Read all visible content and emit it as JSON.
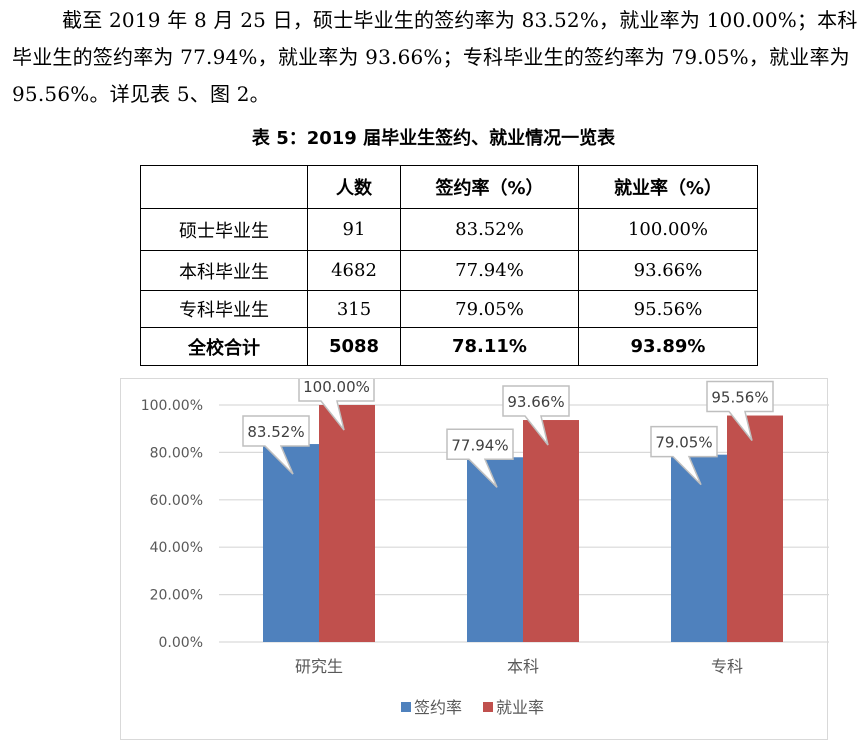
{
  "paragraph": "截至 2019 年 8 月 25 日，硕士毕业生的签约率为 83.52%，就业率为 100.00%；本科毕业生的签约率为 77.94%，就业率为 93.66%；专科毕业生的签约率为 79.05%，就业率为 95.56%。详见表 5、图 2。",
  "table": {
    "caption": "表 5：2019 届毕业生签约、就业情况一览表",
    "headers": [
      "",
      "人数",
      "签约率（%）",
      "就业率（%）"
    ],
    "rows": [
      [
        "硕士毕业生",
        "91",
        "83.52%",
        "100.00%"
      ],
      [
        "本科毕业生",
        "4682",
        "77.94%",
        "93.66%"
      ],
      [
        "专科毕业生",
        "315",
        "79.05%",
        "95.56%"
      ]
    ],
    "total": [
      "全校合计",
      "5088",
      "78.11%",
      "93.89%"
    ]
  },
  "chart_data": {
    "type": "bar",
    "categories": [
      "研究生",
      "本科",
      "专科"
    ],
    "series": [
      {
        "name": "签约率",
        "values": [
          83.52,
          77.94,
          79.05
        ],
        "labels": [
          "83.52%",
          "77.94%",
          "79.05%"
        ],
        "color": "#4f81bd"
      },
      {
        "name": "就业率",
        "values": [
          100.0,
          93.66,
          95.56
        ],
        "labels": [
          "100.00%",
          "93.66%",
          "95.56%"
        ],
        "color": "#c0504d"
      }
    ],
    "yticks": [
      "0.00%",
      "20.00%",
      "40.00%",
      "60.00%",
      "80.00%",
      "100.00%"
    ],
    "ylim": [
      0,
      100
    ],
    "grid": true,
    "legend": "bottom"
  }
}
